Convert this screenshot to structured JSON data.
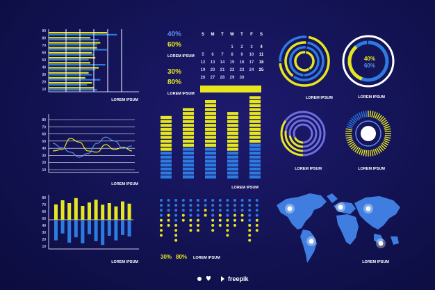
{
  "colors": {
    "yellow": "#e6e61f",
    "blue": "#2d7be0",
    "lightblue": "#5b8fe8",
    "white": "#ffffff",
    "purple": "#6e6ee0",
    "axis": "#c8c8f0"
  },
  "caption": "LOREM IPSUM",
  "footer": {
    "brand": "freepik",
    "icons": [
      "user-icon",
      "heart-icon"
    ]
  },
  "chart_data": [
    {
      "id": "hbar",
      "type": "bar",
      "orientation": "horizontal",
      "ytick_labels": [
        "90",
        "80",
        "70",
        "60",
        "50",
        "40",
        "30",
        "20",
        "10"
      ],
      "series": [
        {
          "values": [
            70,
            50,
            62,
            58,
            52,
            56,
            50,
            60,
            48,
            44,
            52,
            54
          ]
        },
        {
          "values": [
            82,
            60,
            58,
            70,
            54,
            48,
            68,
            56,
            52,
            62,
            46,
            58
          ]
        }
      ],
      "caption": "LOREM IPSUM"
    },
    {
      "id": "lines",
      "type": "line",
      "ytick_labels": [
        "80",
        "70",
        "60",
        "50",
        "40",
        "30",
        "20",
        "10"
      ],
      "series": [
        {
          "values": [
            30,
            32,
            50,
            44,
            30,
            28,
            40,
            32,
            36,
            30
          ]
        },
        {
          "values": [
            42,
            35,
            28,
            20,
            26,
            42,
            52,
            46,
            34,
            38
          ]
        }
      ],
      "caption": "LOREM IPSUM"
    },
    {
      "id": "vbar",
      "type": "bar",
      "ytick_labels": [
        "80",
        "70",
        "60",
        "50",
        "40",
        "30",
        "20",
        "10"
      ],
      "series": [
        {
          "values": [
            55,
            70,
            60,
            78,
            50,
            62,
            72,
            54,
            60,
            48,
            66,
            58
          ]
        },
        {
          "values": [
            52,
            34,
            58,
            44,
            60,
            36,
            54,
            64,
            40,
            52,
            38,
            42
          ]
        }
      ],
      "caption": "LOREM IPSUM"
    },
    {
      "id": "kpi",
      "type": "table",
      "stats1": [
        "40%",
        "60%"
      ],
      "stats2": [
        "30%",
        "80%"
      ],
      "caption": "LOREM IPSUM"
    },
    {
      "id": "calendar",
      "type": "table",
      "days": [
        "S",
        "M",
        "T",
        "W",
        "T",
        "F",
        "S"
      ],
      "weeks": [
        [
          "",
          "",
          "",
          "1",
          "2",
          "3",
          "4"
        ],
        [
          "5",
          "6",
          "7",
          "8",
          "9",
          "10",
          "11"
        ],
        [
          "12",
          "13",
          "14",
          "15",
          "16",
          "17",
          "18"
        ],
        [
          "19",
          "20",
          "21",
          "22",
          "23",
          "24",
          "25"
        ],
        [
          "26",
          "27",
          "28",
          "29",
          "30",
          "",
          ""
        ]
      ]
    },
    {
      "id": "columns",
      "type": "bar",
      "values": [
        62,
        72,
        78,
        68,
        82
      ],
      "caption": "LOREM IPSUM"
    },
    {
      "id": "dots",
      "type": "scatter",
      "values": [
        86,
        60,
        92,
        46,
        68,
        72,
        40,
        76,
        56,
        84,
        64,
        50,
        90,
        70
      ],
      "legend": [
        "30%",
        "80%"
      ],
      "caption": "LOREM IPSUM"
    },
    {
      "id": "ring1",
      "type": "pie",
      "values": [
        75,
        60,
        50,
        40
      ],
      "caption": "LOREM IPSUM"
    },
    {
      "id": "ring2",
      "type": "pie",
      "labels": [
        "40%",
        "60%"
      ],
      "values": [
        40,
        60
      ],
      "caption": "LOREM IPSUM"
    },
    {
      "id": "ring3",
      "type": "pie",
      "values": [
        70,
        55,
        45,
        35
      ],
      "caption": "LOREM IPSUM"
    },
    {
      "id": "ring4",
      "type": "pie",
      "values": [
        80
      ],
      "caption": "LOREM IPSUM"
    },
    {
      "id": "map",
      "type": "table",
      "markers": [
        "north-america",
        "south-america",
        "europe",
        "asia",
        "australia"
      ],
      "caption": "LOREM IPSUM"
    }
  ]
}
